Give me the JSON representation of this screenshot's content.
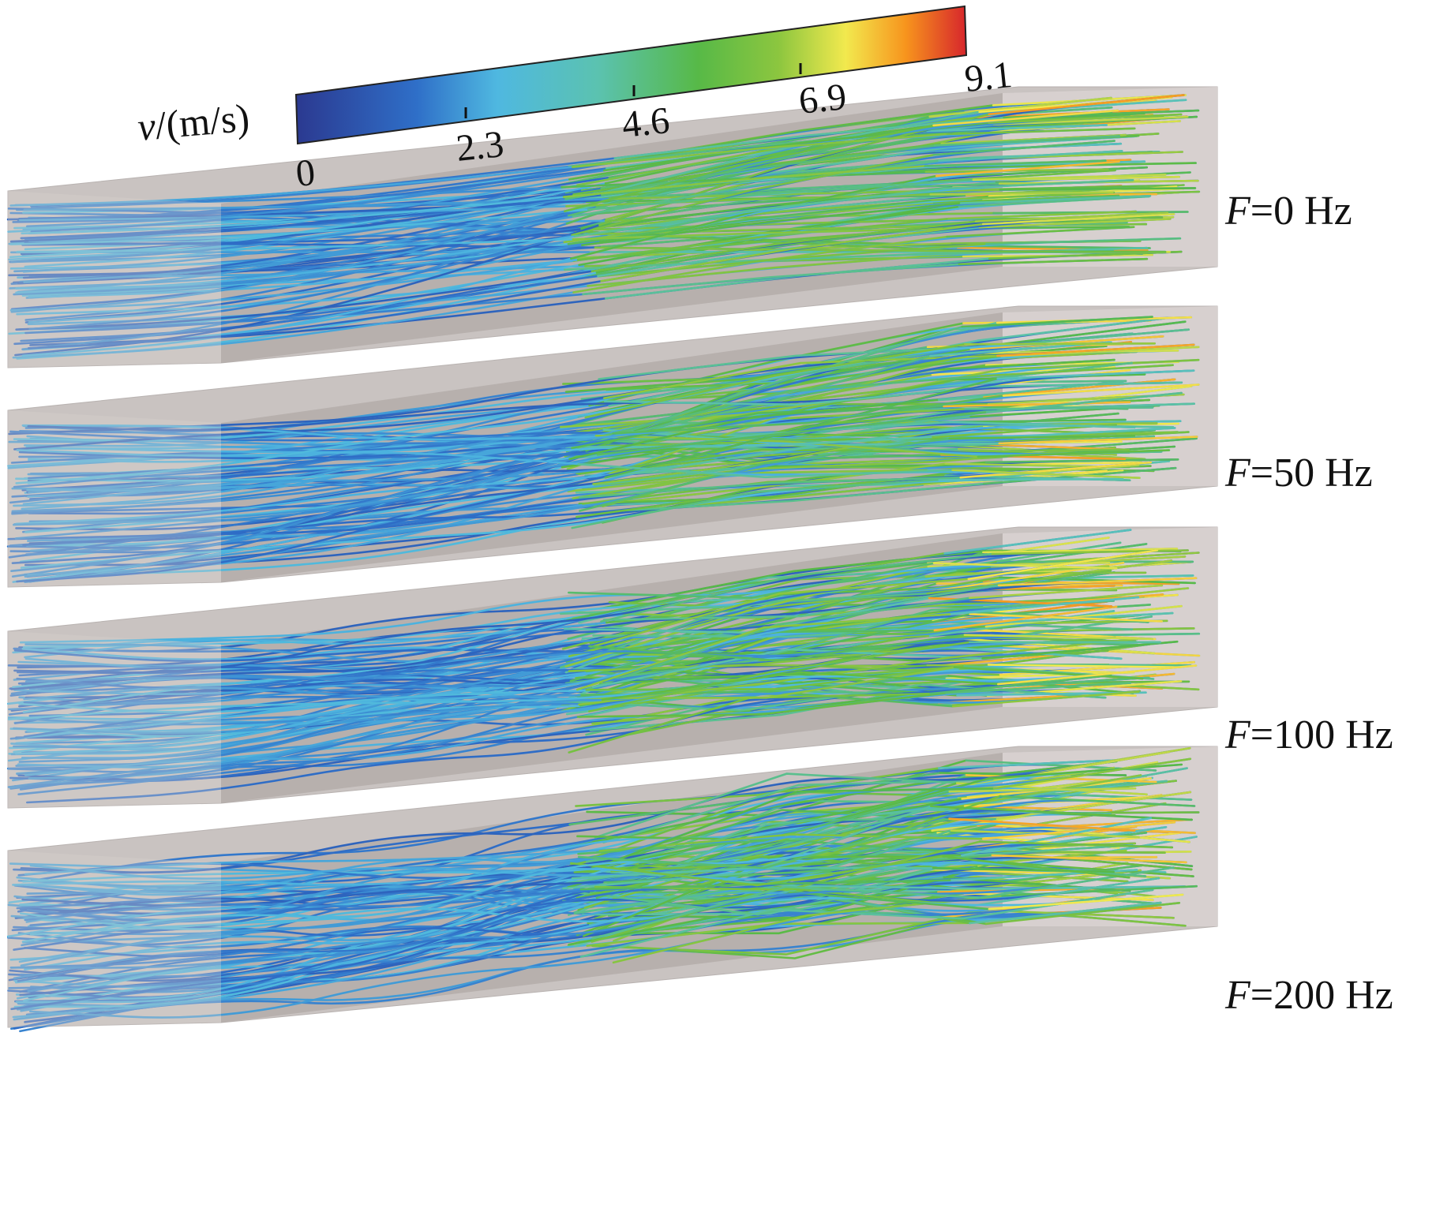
{
  "colorbar": {
    "variable": "v",
    "unit_text": "/(m/s)",
    "ticks": [
      "0",
      "2.3",
      "4.6",
      "6.9",
      "9.1"
    ],
    "min": 0,
    "max": 9.1,
    "colors": [
      "#2b3990",
      "#2f6fc8",
      "#4fb8e0",
      "#5bc2b0",
      "#57b947",
      "#8cc63f",
      "#f2e94e",
      "#f7941d",
      "#d7262c"
    ]
  },
  "panels": [
    {
      "var": "F",
      "text": "=0 Hz"
    },
    {
      "var": "F",
      "text": "=50 Hz"
    },
    {
      "var": "F",
      "text": "=100 Hz"
    },
    {
      "var": "F",
      "text": "=200 Hz"
    }
  ]
}
